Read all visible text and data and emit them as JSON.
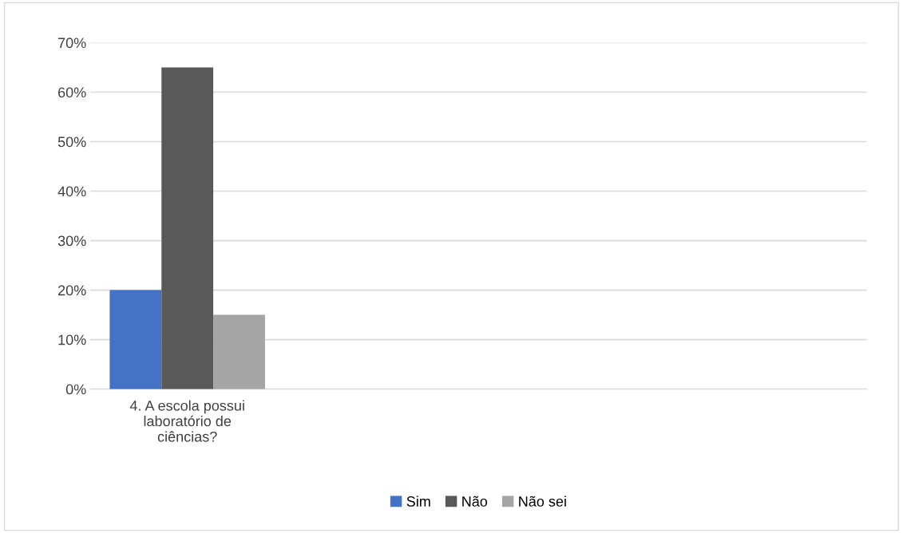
{
  "chart_data": {
    "type": "bar",
    "categories": [
      "4. A escola possui\nlaboratório de\nciências?",
      null,
      null,
      null
    ],
    "series": [
      {
        "name": "Sim",
        "color": "#4472c4",
        "values": [
          20,
          null,
          null,
          null
        ]
      },
      {
        "name": "Não",
        "color": "#595959",
        "values": [
          65,
          null,
          null,
          null
        ]
      },
      {
        "name": "Não sei",
        "color": "#a5a5a5",
        "values": [
          15,
          null,
          null,
          null
        ]
      }
    ],
    "ylim": [
      0,
      70
    ],
    "yticks": [
      {
        "value": 0,
        "label": "0%"
      },
      {
        "value": 10,
        "label": "10%"
      },
      {
        "value": 20,
        "label": "20%"
      },
      {
        "value": 30,
        "label": "30%"
      },
      {
        "value": 40,
        "label": "40%"
      },
      {
        "value": 50,
        "label": "50%"
      },
      {
        "value": 60,
        "label": "60%"
      },
      {
        "value": 70,
        "label": "70%"
      }
    ],
    "grid": "y",
    "legend": "bottom"
  }
}
